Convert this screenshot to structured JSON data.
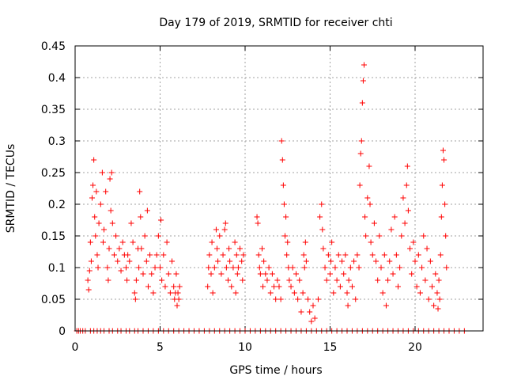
{
  "chart_data": {
    "type": "scatter",
    "title": "Day 179 of 2019, SRMTID for receiver chti",
    "xlabel": "GPS time / hours",
    "ylabel": "SRMTID / TECUs",
    "xlim": [
      0,
      24
    ],
    "ylim": [
      0,
      0.45
    ],
    "x_ticks": [
      0,
      5,
      10,
      15,
      20
    ],
    "x_tick_labels": [
      "0",
      "5",
      "10",
      "15",
      "20"
    ],
    "y_ticks": [
      0,
      0.05,
      0.1,
      0.15,
      0.2,
      0.25,
      0.3,
      0.35,
      0.4,
      0.45
    ],
    "y_tick_labels": [
      "0",
      "0.05",
      "0.1",
      "0.15",
      "0.2",
      "0.25",
      "0.3",
      "0.35",
      "0.4",
      "0.45"
    ],
    "grid": true,
    "marker": "+",
    "series": [
      {
        "name": "SRMTID",
        "color": "#ff0000",
        "points": [
          [
            0.1,
            0
          ],
          [
            0.2,
            0
          ],
          [
            0.3,
            0
          ],
          [
            0.45,
            0
          ],
          [
            0.6,
            0
          ],
          [
            0.9,
            0
          ],
          [
            1.1,
            0
          ],
          [
            1.3,
            0
          ],
          [
            1.5,
            0
          ],
          [
            1.7,
            0
          ],
          [
            2.0,
            0
          ],
          [
            2.2,
            0
          ],
          [
            2.5,
            0
          ],
          [
            2.7,
            0
          ],
          [
            3.0,
            0
          ],
          [
            3.2,
            0
          ],
          [
            3.5,
            0
          ],
          [
            3.7,
            0
          ],
          [
            4.0,
            0
          ],
          [
            4.3,
            0
          ],
          [
            4.6,
            0
          ],
          [
            4.9,
            0
          ],
          [
            5.2,
            0
          ],
          [
            5.5,
            0
          ],
          [
            5.8,
            0
          ],
          [
            6.1,
            0
          ],
          [
            6.4,
            0
          ],
          [
            6.7,
            0
          ],
          [
            7.0,
            0
          ],
          [
            7.3,
            0
          ],
          [
            7.6,
            0
          ],
          [
            7.9,
            0
          ],
          [
            8.2,
            0
          ],
          [
            8.5,
            0
          ],
          [
            8.8,
            0
          ],
          [
            9.1,
            0
          ],
          [
            9.4,
            0
          ],
          [
            9.7,
            0
          ],
          [
            10.0,
            0
          ],
          [
            10.3,
            0
          ],
          [
            10.6,
            0
          ],
          [
            10.9,
            0
          ],
          [
            11.2,
            0
          ],
          [
            11.5,
            0
          ],
          [
            11.8,
            0
          ],
          [
            12.1,
            0
          ],
          [
            12.4,
            0
          ],
          [
            12.7,
            0
          ],
          [
            13.0,
            0
          ],
          [
            13.3,
            0
          ],
          [
            13.6,
            0
          ],
          [
            13.9,
            0
          ],
          [
            14.2,
            0
          ],
          [
            14.5,
            0
          ],
          [
            14.8,
            0
          ],
          [
            15.1,
            0
          ],
          [
            15.4,
            0
          ],
          [
            15.7,
            0
          ],
          [
            16.0,
            0
          ],
          [
            16.3,
            0
          ],
          [
            16.6,
            0
          ],
          [
            16.9,
            0
          ],
          [
            17.2,
            0
          ],
          [
            17.5,
            0
          ],
          [
            17.8,
            0
          ],
          [
            18.1,
            0
          ],
          [
            18.4,
            0
          ],
          [
            18.7,
            0
          ],
          [
            19.0,
            0
          ],
          [
            19.3,
            0
          ],
          [
            19.6,
            0
          ],
          [
            19.9,
            0
          ],
          [
            20.2,
            0
          ],
          [
            20.5,
            0
          ],
          [
            20.8,
            0
          ],
          [
            21.1,
            0
          ],
          [
            21.4,
            0
          ],
          [
            21.7,
            0
          ],
          [
            22.0,
            0
          ],
          [
            22.3,
            0
          ],
          [
            22.6,
            0
          ],
          [
            22.9,
            0
          ],
          [
            0.75,
            0.08
          ],
          [
            0.8,
            0.065
          ],
          [
            0.85,
            0.095
          ],
          [
            0.9,
            0.14
          ],
          [
            0.95,
            0.11
          ],
          [
            1.0,
            0.21
          ],
          [
            1.05,
            0.23
          ],
          [
            1.1,
            0.27
          ],
          [
            1.15,
            0.18
          ],
          [
            1.2,
            0.15
          ],
          [
            1.25,
            0.22
          ],
          [
            1.3,
            0.12
          ],
          [
            1.35,
            0.1
          ],
          [
            1.4,
            0.17
          ],
          [
            1.5,
            0.2
          ],
          [
            1.6,
            0.25
          ],
          [
            1.65,
            0.14
          ],
          [
            1.7,
            0.16
          ],
          [
            1.8,
            0.22
          ],
          [
            1.9,
            0.1
          ],
          [
            1.95,
            0.08
          ],
          [
            2.0,
            0.13
          ],
          [
            2.05,
            0.24
          ],
          [
            2.1,
            0.19
          ],
          [
            2.15,
            0.25
          ],
          [
            2.2,
            0.17
          ],
          [
            2.3,
            0.12
          ],
          [
            2.4,
            0.15
          ],
          [
            2.5,
            0.11
          ],
          [
            2.6,
            0.13
          ],
          [
            2.7,
            0.095
          ],
          [
            2.8,
            0.14
          ],
          [
            2.9,
            0.12
          ],
          [
            3.0,
            0.1
          ],
          [
            3.05,
            0.08
          ],
          [
            3.1,
            0.12
          ],
          [
            3.2,
            0.11
          ],
          [
            3.3,
            0.17
          ],
          [
            3.4,
            0.14
          ],
          [
            3.5,
            0.06
          ],
          [
            3.55,
            0.05
          ],
          [
            3.6,
            0.08
          ],
          [
            3.7,
            0.13
          ],
          [
            3.75,
            0.1
          ],
          [
            3.8,
            0.22
          ],
          [
            3.85,
            0.18
          ],
          [
            3.9,
            0.13
          ],
          [
            4.0,
            0.09
          ],
          [
            4.1,
            0.15
          ],
          [
            4.2,
            0.11
          ],
          [
            4.25,
            0.19
          ],
          [
            4.3,
            0.07
          ],
          [
            4.4,
            0.12
          ],
          [
            4.5,
            0.09
          ],
          [
            4.6,
            0.06
          ],
          [
            4.7,
            0.1
          ],
          [
            4.8,
            0.12
          ],
          [
            4.9,
            0.15
          ],
          [
            5.0,
            0.1
          ],
          [
            5.05,
            0.175
          ],
          [
            5.1,
            0.08
          ],
          [
            5.2,
            0.12
          ],
          [
            5.3,
            0.07
          ],
          [
            5.4,
            0.14
          ],
          [
            5.5,
            0.09
          ],
          [
            5.6,
            0.06
          ],
          [
            5.7,
            0.11
          ],
          [
            5.8,
            0.07
          ],
          [
            5.85,
            0.05
          ],
          [
            5.9,
            0.06
          ],
          [
            5.95,
            0.09
          ],
          [
            6.0,
            0.04
          ],
          [
            6.05,
            0.06
          ],
          [
            6.1,
            0.05
          ],
          [
            6.15,
            0.07
          ],
          [
            7.8,
            0.07
          ],
          [
            7.85,
            0.1
          ],
          [
            7.9,
            0.12
          ],
          [
            8.0,
            0.09
          ],
          [
            8.05,
            0.14
          ],
          [
            8.1,
            0.06
          ],
          [
            8.2,
            0.1
          ],
          [
            8.3,
            0.16
          ],
          [
            8.35,
            0.13
          ],
          [
            8.4,
            0.11
          ],
          [
            8.5,
            0.15
          ],
          [
            8.6,
            0.09
          ],
          [
            8.7,
            0.12
          ],
          [
            8.8,
            0.16
          ],
          [
            8.85,
            0.17
          ],
          [
            8.9,
            0.1
          ],
          [
            9.0,
            0.08
          ],
          [
            9.05,
            0.13
          ],
          [
            9.1,
            0.11
          ],
          [
            9.2,
            0.07
          ],
          [
            9.3,
            0.1
          ],
          [
            9.4,
            0.14
          ],
          [
            9.45,
            0.06
          ],
          [
            9.5,
            0.12
          ],
          [
            9.55,
            0.09
          ],
          [
            9.6,
            0.1
          ],
          [
            9.7,
            0.13
          ],
          [
            9.8,
            0.11
          ],
          [
            9.85,
            0.08
          ],
          [
            9.9,
            0.12
          ],
          [
            10.7,
            0.18
          ],
          [
            10.75,
            0.17
          ],
          [
            10.8,
            0.12
          ],
          [
            10.85,
            0.1
          ],
          [
            10.9,
            0.09
          ],
          [
            11.0,
            0.13
          ],
          [
            11.05,
            0.07
          ],
          [
            11.1,
            0.11
          ],
          [
            11.2,
            0.09
          ],
          [
            11.3,
            0.08
          ],
          [
            11.4,
            0.1
          ],
          [
            11.5,
            0.06
          ],
          [
            11.6,
            0.09
          ],
          [
            11.7,
            0.07
          ],
          [
            11.8,
            0.05
          ],
          [
            11.9,
            0.08
          ],
          [
            12.0,
            0.07
          ],
          [
            12.1,
            0.05
          ],
          [
            12.15,
            0.3
          ],
          [
            12.2,
            0.27
          ],
          [
            12.25,
            0.23
          ],
          [
            12.3,
            0.2
          ],
          [
            12.35,
            0.15
          ],
          [
            12.4,
            0.18
          ],
          [
            12.45,
            0.12
          ],
          [
            12.5,
            0.14
          ],
          [
            12.55,
            0.1
          ],
          [
            12.6,
            0.08
          ],
          [
            12.7,
            0.07
          ],
          [
            12.8,
            0.1
          ],
          [
            12.9,
            0.06
          ],
          [
            13.0,
            0.09
          ],
          [
            13.1,
            0.05
          ],
          [
            13.2,
            0.08
          ],
          [
            13.3,
            0.03
          ],
          [
            13.4,
            0.06
          ],
          [
            13.45,
            0.12
          ],
          [
            13.5,
            0.1
          ],
          [
            13.55,
            0.14
          ],
          [
            13.6,
            0.11
          ],
          [
            13.7,
            0.05
          ],
          [
            13.8,
            0.03
          ],
          [
            13.9,
            0.015
          ],
          [
            14.0,
            0.04
          ],
          [
            14.1,
            0.02
          ],
          [
            14.3,
            0.05
          ],
          [
            14.4,
            0.18
          ],
          [
            14.5,
            0.2
          ],
          [
            14.55,
            0.16
          ],
          [
            14.6,
            0.13
          ],
          [
            14.7,
            0.1
          ],
          [
            14.8,
            0.08
          ],
          [
            14.9,
            0.12
          ],
          [
            15.0,
            0.09
          ],
          [
            15.05,
            0.11
          ],
          [
            15.1,
            0.14
          ],
          [
            15.2,
            0.06
          ],
          [
            15.3,
            0.1
          ],
          [
            15.4,
            0.08
          ],
          [
            15.5,
            0.12
          ],
          [
            15.6,
            0.07
          ],
          [
            15.7,
            0.11
          ],
          [
            15.8,
            0.09
          ],
          [
            15.9,
            0.12
          ],
          [
            16.0,
            0.06
          ],
          [
            16.05,
            0.04
          ],
          [
            16.1,
            0.08
          ],
          [
            16.2,
            0.1
          ],
          [
            16.3,
            0.07
          ],
          [
            16.4,
            0.11
          ],
          [
            16.5,
            0.05
          ],
          [
            16.6,
            0.12
          ],
          [
            16.7,
            0.1
          ],
          [
            16.75,
            0.23
          ],
          [
            16.8,
            0.28
          ],
          [
            16.85,
            0.3
          ],
          [
            16.9,
            0.36
          ],
          [
            16.95,
            0.395
          ],
          [
            17.0,
            0.42
          ],
          [
            17.05,
            0.18
          ],
          [
            17.1,
            0.15
          ],
          [
            17.2,
            0.21
          ],
          [
            17.3,
            0.26
          ],
          [
            17.35,
            0.2
          ],
          [
            17.4,
            0.14
          ],
          [
            17.5,
            0.12
          ],
          [
            17.6,
            0.17
          ],
          [
            17.7,
            0.11
          ],
          [
            17.8,
            0.08
          ],
          [
            17.9,
            0.15
          ],
          [
            18.0,
            0.1
          ],
          [
            18.1,
            0.06
          ],
          [
            18.2,
            0.12
          ],
          [
            18.3,
            0.04
          ],
          [
            18.4,
            0.08
          ],
          [
            18.5,
            0.11
          ],
          [
            18.6,
            0.16
          ],
          [
            18.7,
            0.09
          ],
          [
            18.8,
            0.18
          ],
          [
            18.9,
            0.12
          ],
          [
            19.0,
            0.07
          ],
          [
            19.1,
            0.1
          ],
          [
            19.2,
            0.15
          ],
          [
            19.3,
            0.21
          ],
          [
            19.4,
            0.17
          ],
          [
            19.5,
            0.23
          ],
          [
            19.55,
            0.26
          ],
          [
            19.6,
            0.19
          ],
          [
            19.7,
            0.13
          ],
          [
            19.8,
            0.09
          ],
          [
            19.9,
            0.14
          ],
          [
            20.0,
            0.11
          ],
          [
            20.1,
            0.07
          ],
          [
            20.2,
            0.12
          ],
          [
            20.3,
            0.06
          ],
          [
            20.4,
            0.1
          ],
          [
            20.5,
            0.15
          ],
          [
            20.6,
            0.08
          ],
          [
            20.7,
            0.13
          ],
          [
            20.8,
            0.05
          ],
          [
            20.9,
            0.11
          ],
          [
            21.0,
            0.07
          ],
          [
            21.1,
            0.04
          ],
          [
            21.2,
            0.09
          ],
          [
            21.3,
            0.06
          ],
          [
            21.35,
            0.035
          ],
          [
            21.4,
            0.08
          ],
          [
            21.45,
            0.05
          ],
          [
            21.5,
            0.12
          ],
          [
            21.55,
            0.18
          ],
          [
            21.6,
            0.23
          ],
          [
            21.65,
            0.285
          ],
          [
            21.7,
            0.27
          ],
          [
            21.75,
            0.2
          ],
          [
            21.8,
            0.15
          ],
          [
            21.85,
            0.1
          ]
        ]
      }
    ]
  }
}
